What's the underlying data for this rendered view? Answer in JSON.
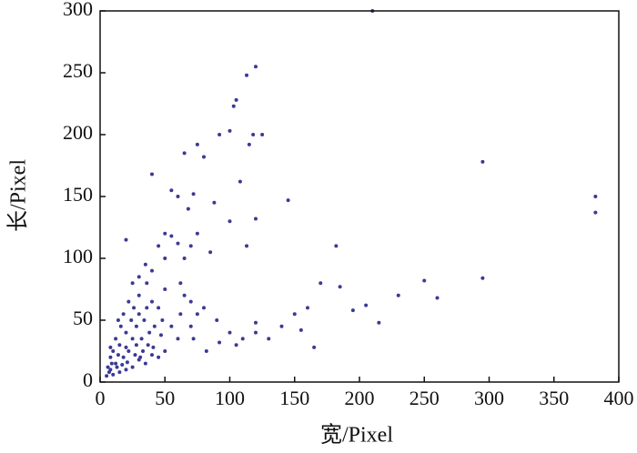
{
  "chart_data": {
    "type": "scatter",
    "x_label": "宽/Pixel",
    "y_label": "长/Pixel",
    "color": "#3b3a94",
    "xlim": [
      0,
      400
    ],
    "ylim": [
      0,
      300
    ],
    "xticks": [
      0,
      50,
      100,
      150,
      200,
      250,
      300,
      350,
      400
    ],
    "yticks": [
      0,
      50,
      100,
      150,
      200,
      250,
      300
    ],
    "x": [
      210,
      120,
      113,
      105,
      103,
      92,
      100,
      118,
      125,
      75,
      115,
      295,
      65,
      80,
      40,
      108,
      382,
      382,
      145,
      55,
      60,
      72,
      68,
      88,
      120,
      113,
      100,
      182,
      20,
      50,
      55,
      45,
      60,
      50,
      35,
      40,
      30,
      25,
      30,
      295,
      250,
      260,
      230,
      205,
      195,
      215,
      170,
      185,
      160,
      150,
      140,
      120,
      110,
      100,
      90,
      80,
      70,
      65,
      75,
      70,
      60,
      50,
      45,
      40,
      35,
      30,
      25,
      20,
      15,
      10,
      8,
      12,
      18,
      22,
      28,
      32,
      38,
      42,
      48,
      15,
      20,
      10,
      8,
      12,
      16,
      24,
      26,
      18,
      22,
      14,
      28,
      34,
      36,
      40,
      30,
      25,
      6,
      7,
      9,
      13,
      17,
      21,
      27,
      31,
      33,
      37,
      41,
      47,
      55,
      62,
      72,
      82,
      92,
      105,
      130,
      165,
      5,
      8,
      14,
      20,
      75,
      70,
      65,
      85,
      62,
      45,
      50,
      36,
      120,
      155
    ],
    "values": [
      300,
      255,
      248,
      228,
      223,
      200,
      203,
      200,
      200,
      192,
      192,
      178,
      185,
      182,
      168,
      162,
      150,
      137,
      147,
      155,
      150,
      152,
      140,
      145,
      132,
      110,
      130,
      110,
      115,
      120,
      118,
      110,
      112,
      100,
      95,
      90,
      85,
      80,
      70,
      84,
      82,
      68,
      70,
      62,
      58,
      48,
      80,
      77,
      60,
      55,
      45,
      40,
      35,
      40,
      50,
      60,
      65,
      70,
      55,
      45,
      35,
      25,
      20,
      22,
      15,
      18,
      12,
      10,
      8,
      6,
      10,
      15,
      20,
      25,
      30,
      35,
      40,
      45,
      50,
      30,
      40,
      25,
      20,
      35,
      45,
      50,
      60,
      55,
      65,
      50,
      45,
      50,
      60,
      65,
      55,
      35,
      12,
      8,
      15,
      12,
      14,
      16,
      22,
      20,
      25,
      30,
      28,
      38,
      45,
      55,
      35,
      25,
      32,
      30,
      35,
      28,
      5,
      28,
      22,
      28,
      120,
      110,
      100,
      105,
      80,
      60,
      75,
      80,
      48,
      42
    ]
  }
}
